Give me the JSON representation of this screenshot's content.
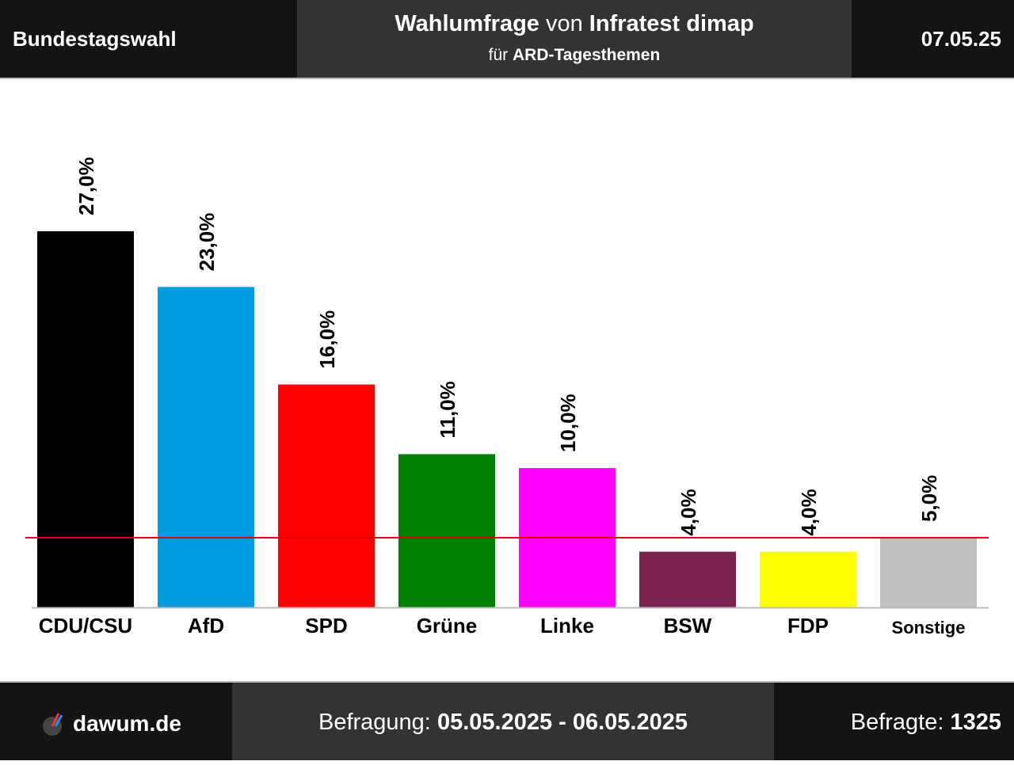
{
  "header": {
    "left": "Bundestagswahl",
    "title_bold_1": "Wahlumfrage",
    "title_mid": " von ",
    "title_bold_2": "Infratest dimap",
    "subtitle_pre": "für ",
    "subtitle_bold": "ARD-Tagesthemen",
    "date": "07.05.25"
  },
  "footer": {
    "brand": "dawum.de",
    "survey_label": "Befragung: ",
    "survey_period": "05.05.2025 - 06.05.2025",
    "respondents_label": "Befragte: ",
    "respondents_value": "1325"
  },
  "chart_data": {
    "type": "bar",
    "categories": [
      "CDU/CSU",
      "AfD",
      "SPD",
      "Grüne",
      "Linke",
      "BSW",
      "FDP",
      "Sonstige"
    ],
    "values": [
      27.0,
      23.0,
      16.0,
      11.0,
      10.0,
      4.0,
      4.0,
      5.0
    ],
    "value_labels": [
      "27,0%",
      "23,0%",
      "16,0%",
      "11,0%",
      "10,0%",
      "4,0%",
      "4,0%",
      "5,0%"
    ],
    "colors": [
      "#000000",
      "#009ee0",
      "#ff0000",
      "#008000",
      "#ff00ff",
      "#7b2450",
      "#ffff00",
      "#c0c0c0"
    ],
    "threshold": 5.0,
    "threshold_color": "#e00000",
    "ylim": [
      0,
      27
    ],
    "grid": false
  }
}
